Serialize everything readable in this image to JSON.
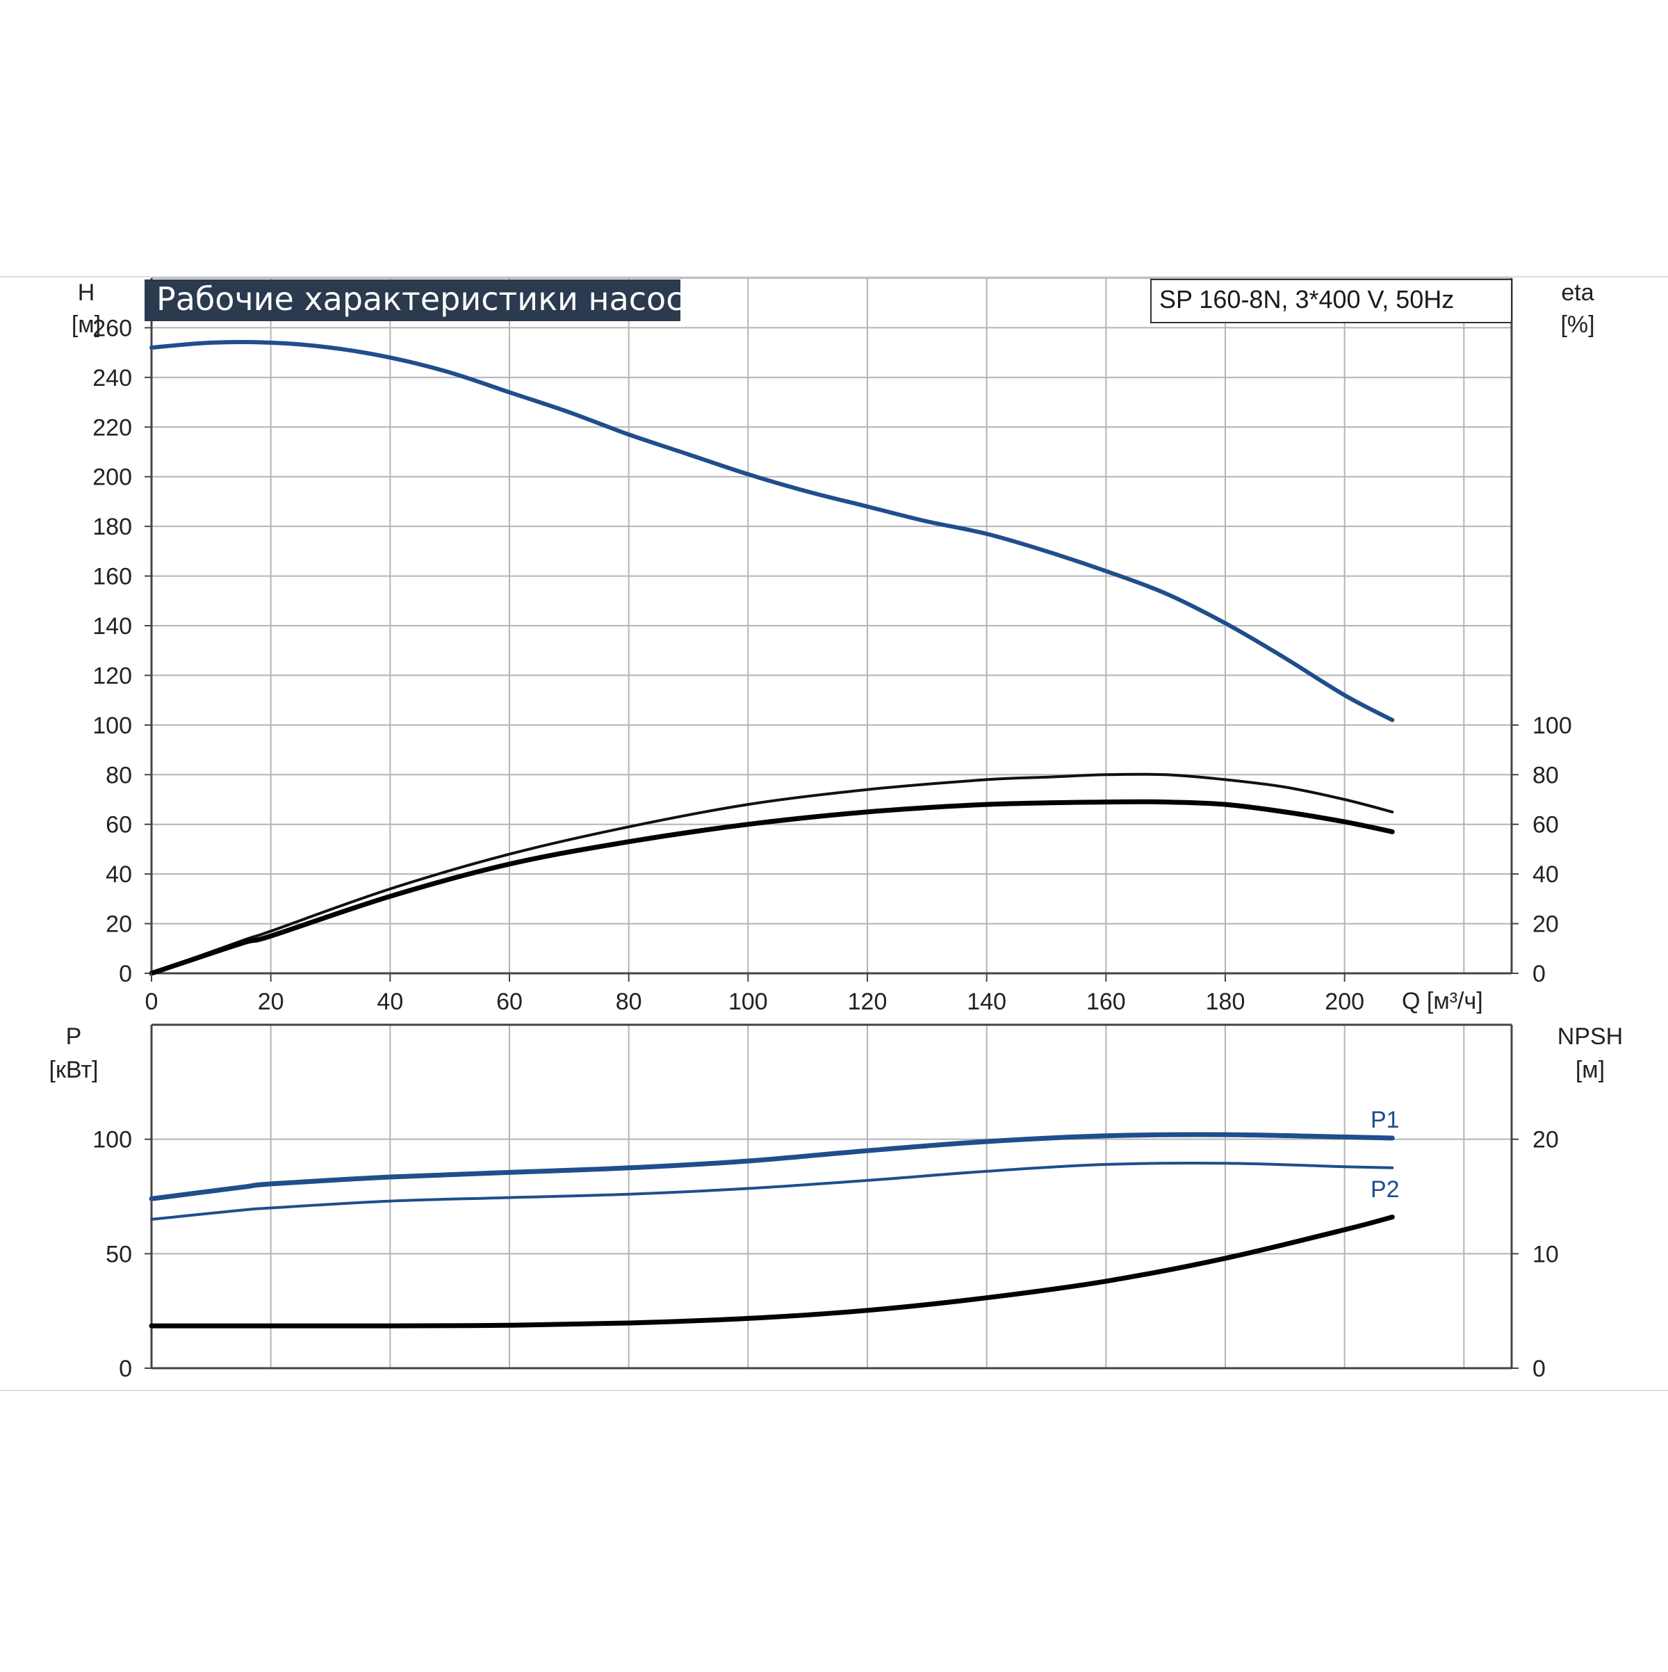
{
  "title": "Рабочие характеристики насоса",
  "model": "SP 160-8N, 3*400 V, 50Hz",
  "chart_data": [
    {
      "type": "line",
      "panel": "top",
      "y_left": {
        "label": "H",
        "unit": "[м]",
        "range": [
          0,
          280
        ],
        "ticks": [
          0,
          20,
          40,
          60,
          80,
          100,
          120,
          140,
          160,
          180,
          200,
          220,
          240,
          260
        ]
      },
      "y_right": {
        "label": "eta",
        "unit": "[%]",
        "range": [
          0,
          280
        ],
        "ticks": [
          0,
          20,
          40,
          60,
          80,
          100
        ]
      },
      "x": {
        "label": "Q [м³/ч]",
        "range": [
          0,
          228
        ],
        "ticks": [
          0,
          20,
          40,
          60,
          80,
          100,
          120,
          140,
          160,
          180,
          200
        ]
      },
      "grid": true,
      "series": [
        {
          "id": "H",
          "axis": "left",
          "color": "#1f4e8c",
          "width": 6,
          "points": [
            [
              0,
              252
            ],
            [
              10,
              254
            ],
            [
              20,
              254
            ],
            [
              30,
              252
            ],
            [
              40,
              248
            ],
            [
              50,
              242
            ],
            [
              60,
              234
            ],
            [
              70,
              226
            ],
            [
              80,
              217
            ],
            [
              90,
              209
            ],
            [
              100,
              201
            ],
            [
              110,
              194
            ],
            [
              120,
              188
            ],
            [
              130,
              182
            ],
            [
              140,
              177
            ],
            [
              150,
              170
            ],
            [
              160,
              162
            ],
            [
              170,
              153
            ],
            [
              180,
              141
            ],
            [
              190,
              127
            ],
            [
              200,
              112
            ],
            [
              208,
              102
            ]
          ]
        },
        {
          "id": "eta-pump",
          "axis": "right",
          "color": "#111111",
          "width": 4,
          "points": [
            [
              0,
              0
            ],
            [
              15,
              13
            ],
            [
              20,
              17
            ],
            [
              40,
              34
            ],
            [
              60,
              48
            ],
            [
              80,
              59
            ],
            [
              100,
              68
            ],
            [
              120,
              74
            ],
            [
              140,
              78
            ],
            [
              150,
              79
            ],
            [
              160,
              80
            ],
            [
              170,
              80
            ],
            [
              180,
              78
            ],
            [
              190,
              75
            ],
            [
              200,
              70
            ],
            [
              208,
              65
            ]
          ]
        },
        {
          "id": "eta-total",
          "axis": "right",
          "color": "#000000",
          "width": 7,
          "points": [
            [
              0,
              0
            ],
            [
              15,
              12
            ],
            [
              20,
              15
            ],
            [
              40,
              31
            ],
            [
              60,
              44
            ],
            [
              80,
              53
            ],
            [
              100,
              60
            ],
            [
              120,
              65
            ],
            [
              140,
              68
            ],
            [
              160,
              69
            ],
            [
              170,
              69
            ],
            [
              180,
              68
            ],
            [
              190,
              65
            ],
            [
              200,
              61
            ],
            [
              208,
              57
            ]
          ]
        }
      ]
    },
    {
      "type": "line",
      "panel": "bottom",
      "y_left": {
        "label": "P",
        "unit": "[кВт]",
        "range": [
          0,
          150
        ],
        "ticks": [
          0,
          50,
          100
        ]
      },
      "y_right": {
        "label": "NPSH",
        "unit": "[м]",
        "range": [
          0,
          30
        ],
        "ticks": [
          0,
          10,
          20
        ]
      },
      "x": {
        "range": [
          0,
          228
        ]
      },
      "grid": true,
      "series": [
        {
          "id": "P1",
          "name": "P1",
          "axis": "left",
          "color": "#1f4e8c",
          "width": 7,
          "points": [
            [
              0,
              74
            ],
            [
              15,
              79
            ],
            [
              20,
              80.5
            ],
            [
              40,
              83.5
            ],
            [
              60,
              85.5
            ],
            [
              80,
              87.5
            ],
            [
              100,
              90.5
            ],
            [
              120,
              95
            ],
            [
              140,
              99
            ],
            [
              160,
              101.5
            ],
            [
              180,
              102
            ],
            [
              200,
              101
            ],
            [
              208,
              100.5
            ]
          ]
        },
        {
          "id": "P2",
          "name": "P2",
          "axis": "left",
          "color": "#1f4e8c",
          "width": 4,
          "points": [
            [
              0,
              65
            ],
            [
              15,
              69
            ],
            [
              20,
              70
            ],
            [
              40,
              73
            ],
            [
              60,
              74.5
            ],
            [
              80,
              76
            ],
            [
              100,
              78.5
            ],
            [
              120,
              82
            ],
            [
              140,
              86
            ],
            [
              160,
              89
            ],
            [
              180,
              89.5
            ],
            [
              200,
              88
            ],
            [
              208,
              87.5
            ]
          ]
        },
        {
          "id": "NPSH",
          "axis": "right",
          "color": "#000000",
          "width": 7,
          "points": [
            [
              0,
              3.7
            ],
            [
              15,
              3.7
            ],
            [
              40,
              3.7
            ],
            [
              60,
              3.75
            ],
            [
              80,
              3.95
            ],
            [
              100,
              4.35
            ],
            [
              120,
              5.05
            ],
            [
              140,
              6.15
            ],
            [
              160,
              7.6
            ],
            [
              180,
              9.6
            ],
            [
              200,
              12.1
            ],
            [
              208,
              13.2
            ]
          ]
        }
      ]
    }
  ]
}
